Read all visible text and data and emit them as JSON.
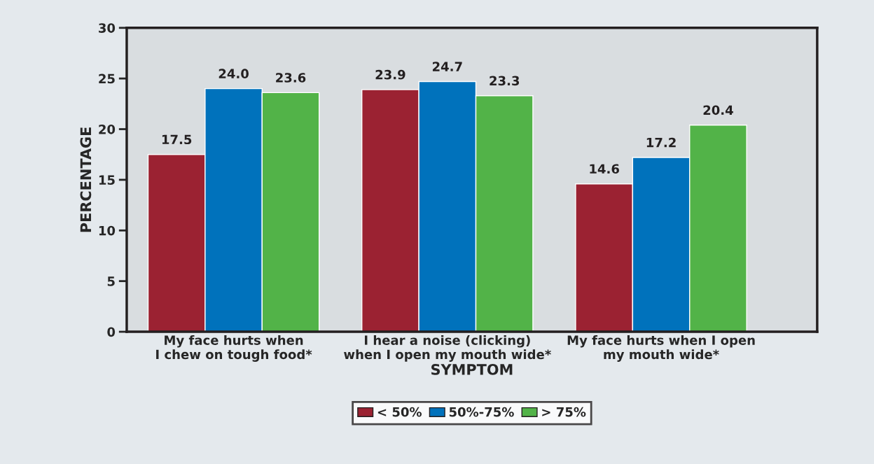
{
  "chart_data": {
    "type": "bar",
    "xlabel": "SYMPTOM",
    "ylabel": "PERCENTAGE",
    "categories": [
      "My face hurts when\nI chew on tough food*",
      "I hear a noise (clicking)\nwhen I open my mouth wide*",
      "My face hurts when I open\nmy mouth wide*"
    ],
    "series": [
      {
        "name": "< 50%",
        "color": "#9b2232",
        "values": [
          17.5,
          23.9,
          14.6
        ]
      },
      {
        "name": "50%-75%",
        "color": "#0072bc",
        "values": [
          24.0,
          24.7,
          17.2
        ],
        "value_labels": [
          "24.0",
          "24.7",
          "17.2"
        ]
      },
      {
        "name": "> 75%",
        "color": "#52b348",
        "values": [
          23.6,
          23.3,
          20.4
        ]
      }
    ],
    "ylim": [
      0,
      30
    ],
    "yticks": [
      0,
      5,
      10,
      15,
      20,
      25,
      30
    ],
    "data_labels": true,
    "legend": "bottom",
    "grid": false
  }
}
